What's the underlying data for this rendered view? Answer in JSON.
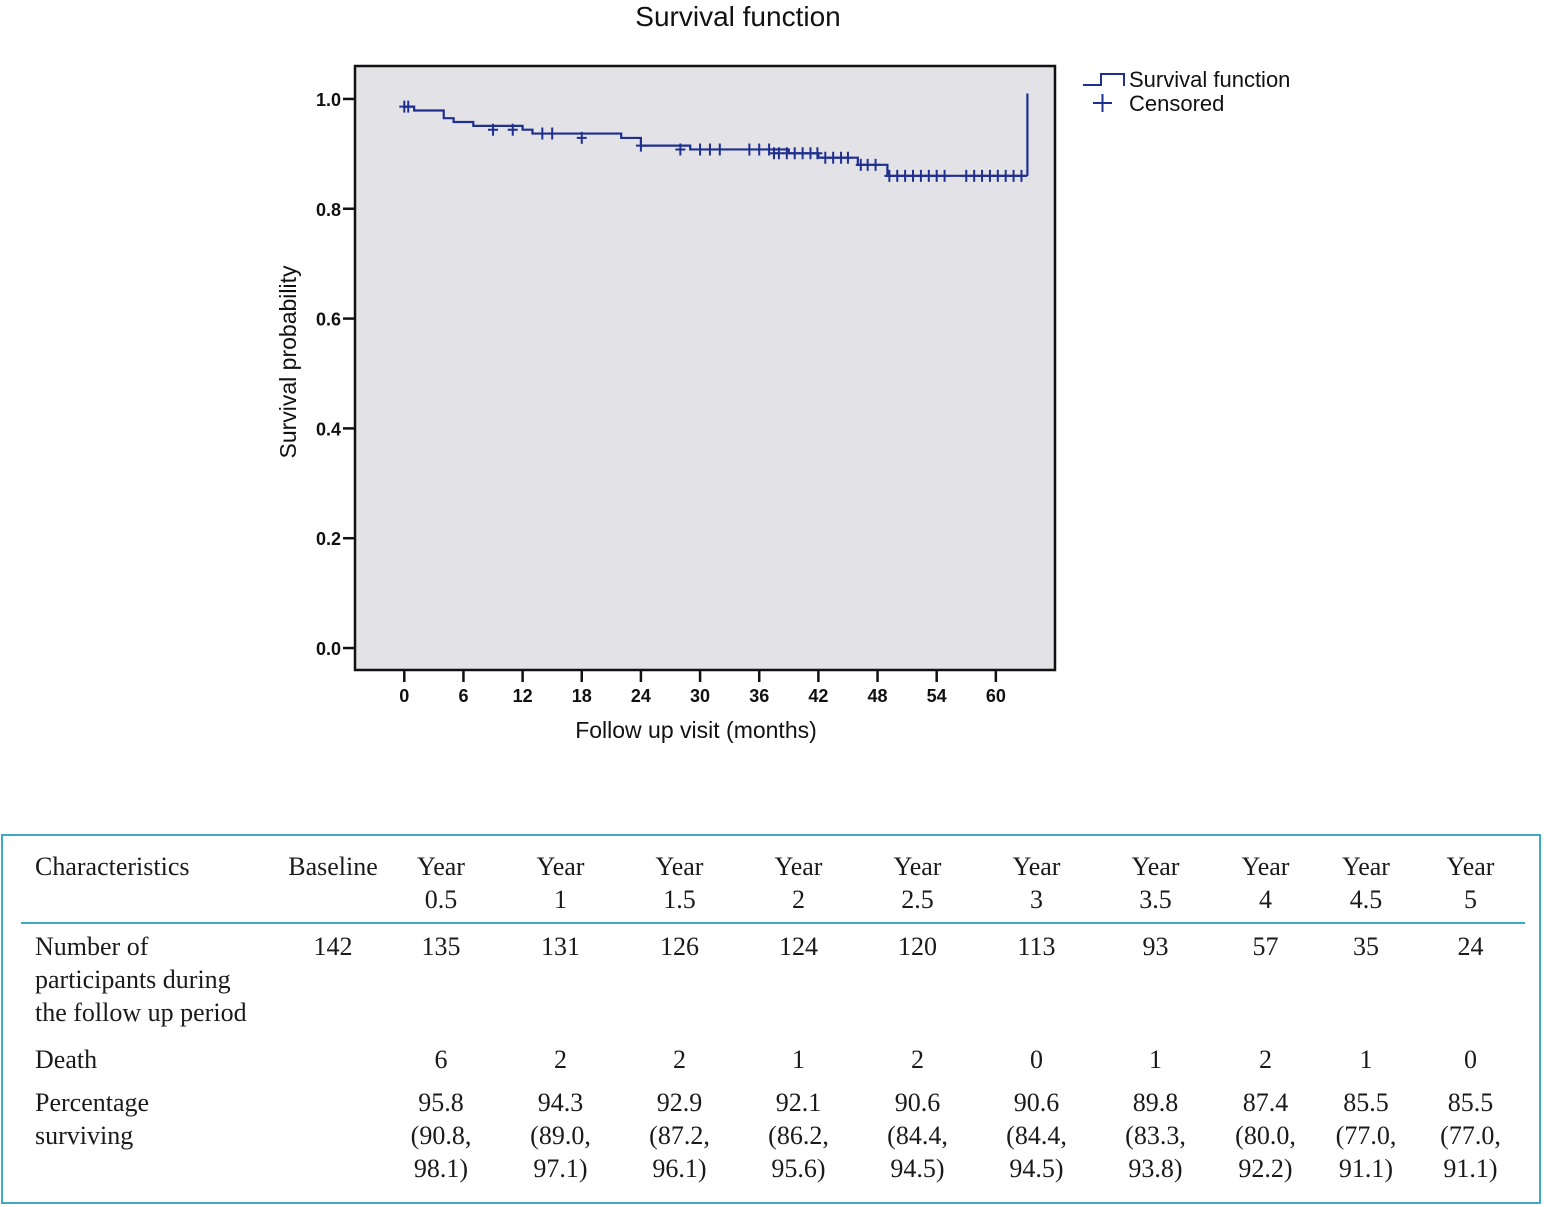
{
  "chart_data": {
    "type": "line",
    "title": "Survival function",
    "xlabel": "Follow up visit (months)",
    "ylabel": "Survival probability",
    "xlim": [
      -5,
      66
    ],
    "ylim": [
      -0.04,
      1.06
    ],
    "xticks": [
      0,
      6,
      12,
      18,
      24,
      30,
      36,
      42,
      48,
      54,
      60
    ],
    "yticks": [
      0.0,
      0.2,
      0.4,
      0.6,
      0.8,
      1.0
    ],
    "ytick_labels": [
      "0.0",
      "0.2",
      "0.4",
      "0.6",
      "0.8",
      "1.0"
    ],
    "legend": {
      "position": "outside-top-right",
      "entries": [
        {
          "key": "line",
          "label": "Survival function"
        },
        {
          "key": "plus",
          "label": "Censored"
        }
      ]
    },
    "series": [
      {
        "name": "Survival function",
        "steps": [
          [
            0,
            0.986
          ],
          [
            1,
            0.979
          ],
          [
            4,
            0.965
          ],
          [
            5,
            0.958
          ],
          [
            7,
            0.951
          ],
          [
            12,
            0.944
          ],
          [
            13,
            0.937
          ],
          [
            22,
            0.929
          ],
          [
            24,
            0.915
          ],
          [
            29,
            0.908
          ],
          [
            39,
            0.901
          ],
          [
            42,
            0.893
          ],
          [
            46,
            0.88
          ],
          [
            49,
            0.86
          ],
          [
            63.2,
            0.86
          ]
        ],
        "censored": [
          [
            0,
            0.986
          ],
          [
            0.4,
            0.986
          ],
          [
            9,
            0.944
          ],
          [
            11,
            0.944
          ],
          [
            14,
            0.937
          ],
          [
            15,
            0.937
          ],
          [
            18,
            0.929
          ],
          [
            24,
            0.915
          ],
          [
            28,
            0.908
          ],
          [
            30,
            0.908
          ],
          [
            31,
            0.908
          ],
          [
            32,
            0.908
          ],
          [
            35,
            0.908
          ],
          [
            36,
            0.908
          ],
          [
            37,
            0.908
          ],
          [
            37.5,
            0.901
          ],
          [
            38,
            0.901
          ],
          [
            38.8,
            0.901
          ],
          [
            39.6,
            0.901
          ],
          [
            40.4,
            0.901
          ],
          [
            41.2,
            0.901
          ],
          [
            41.9,
            0.901
          ],
          [
            42.7,
            0.893
          ],
          [
            43.5,
            0.893
          ],
          [
            44.3,
            0.893
          ],
          [
            45,
            0.893
          ],
          [
            46.3,
            0.88
          ],
          [
            47,
            0.88
          ],
          [
            47.8,
            0.88
          ],
          [
            49.2,
            0.86
          ],
          [
            50,
            0.86
          ],
          [
            50.8,
            0.86
          ],
          [
            51.6,
            0.86
          ],
          [
            52.4,
            0.86
          ],
          [
            53.2,
            0.86
          ],
          [
            54,
            0.86
          ],
          [
            54.8,
            0.86
          ],
          [
            57,
            0.86
          ],
          [
            57.8,
            0.86
          ],
          [
            58.6,
            0.86
          ],
          [
            59.4,
            0.86
          ],
          [
            60.2,
            0.86
          ],
          [
            61,
            0.86
          ],
          [
            61.8,
            0.86
          ],
          [
            62.6,
            0.86
          ]
        ],
        "final_drop": [
          63.2,
          0.86,
          1.01
        ]
      }
    ]
  },
  "table": {
    "headers": [
      [
        "Characteristics"
      ],
      [
        "Baseline"
      ],
      [
        "Year",
        "0.5"
      ],
      [
        "Year",
        "1"
      ],
      [
        "Year",
        "1.5"
      ],
      [
        "Year",
        "2"
      ],
      [
        "Year",
        "2.5"
      ],
      [
        "Year",
        "3"
      ],
      [
        "Year",
        "3.5"
      ],
      [
        "Year",
        "4"
      ],
      [
        "Year",
        "4.5"
      ],
      [
        "Year",
        "5"
      ]
    ],
    "rows": [
      {
        "label": [
          "Number of",
          "participants during",
          "the follow up period"
        ],
        "cells": [
          [
            "142"
          ],
          [
            "135"
          ],
          [
            "131"
          ],
          [
            "126"
          ],
          [
            "124"
          ],
          [
            "120"
          ],
          [
            "113"
          ],
          [
            "93"
          ],
          [
            "57"
          ],
          [
            "35"
          ],
          [
            "24"
          ]
        ]
      },
      {
        "label": [
          "Death"
        ],
        "cells": [
          [],
          [
            "6"
          ],
          [
            "2"
          ],
          [
            "2"
          ],
          [
            "1"
          ],
          [
            "2"
          ],
          [
            "0"
          ],
          [
            "1"
          ],
          [
            "2"
          ],
          [
            "1"
          ],
          [
            "0"
          ]
        ]
      },
      {
        "label": [
          "Percentage",
          "surviving"
        ],
        "cells": [
          [],
          [
            "95.8",
            "(90.8,",
            "98.1)"
          ],
          [
            "94.3",
            "(89.0,",
            "97.1)"
          ],
          [
            "92.9",
            "(87.2,",
            "96.1)"
          ],
          [
            "92.1",
            "(86.2,",
            "95.6)"
          ],
          [
            "90.6",
            "(84.4,",
            "94.5)"
          ],
          [
            "90.6",
            "(84.4,",
            "94.5)"
          ],
          [
            "89.8",
            "(83.3,",
            "93.8)"
          ],
          [
            "87.4",
            "(80.0,",
            "92.2)"
          ],
          [
            "85.5",
            "(77.0,",
            "91.1)"
          ],
          [
            "85.5",
            "(77.0,",
            "91.1)"
          ]
        ]
      }
    ]
  },
  "colors": {
    "curve": "#1f2f8f",
    "plot_bg": "#e3e3e7",
    "table_border": "#3fa9c8"
  }
}
